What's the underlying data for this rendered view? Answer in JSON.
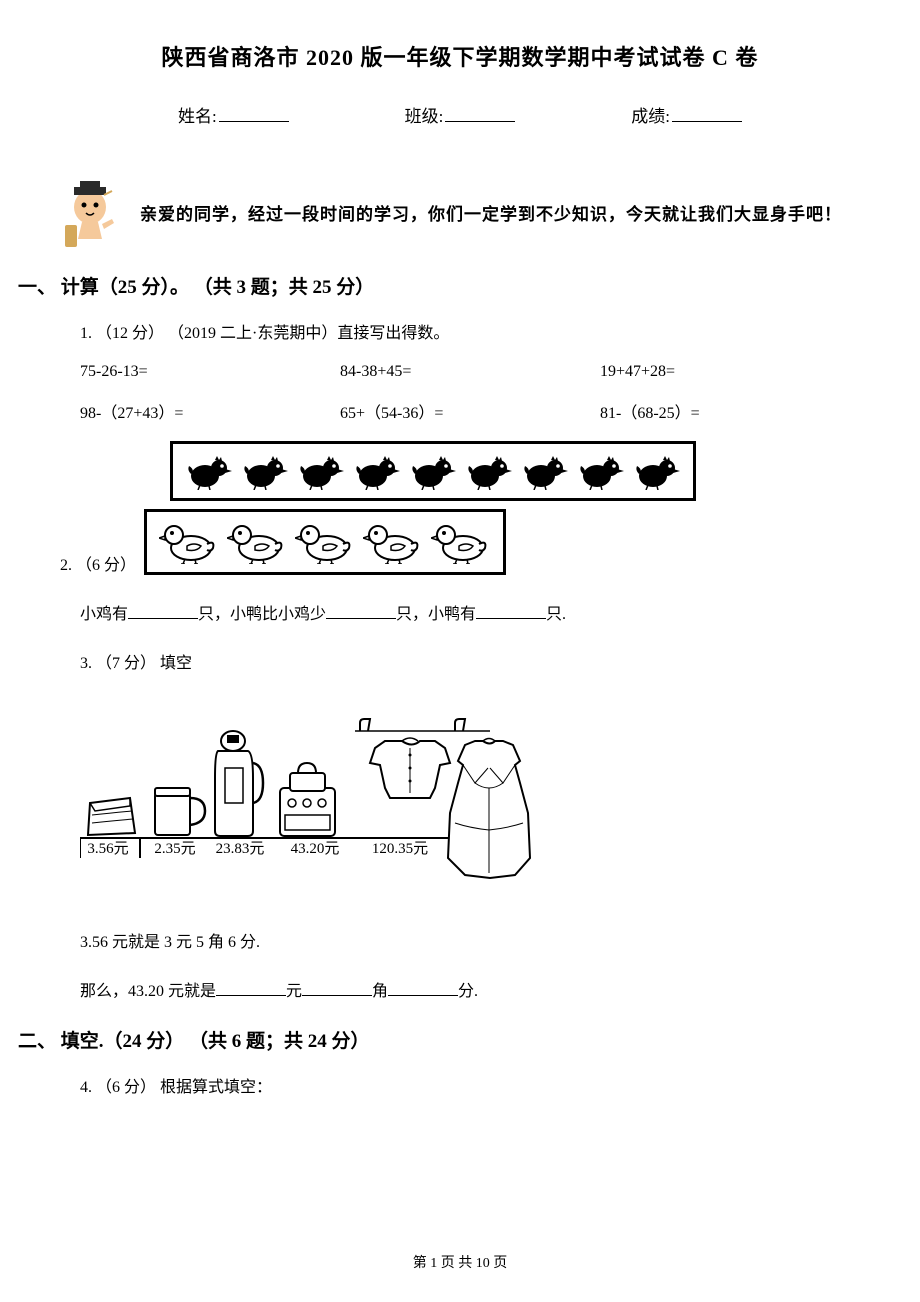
{
  "title": "陕西省商洛市 2020 版一年级下学期数学期中考试试卷 C 卷",
  "info": {
    "name_label": "姓名:",
    "class_label": "班级:",
    "score_label": "成绩:"
  },
  "greeting": "亲爱的同学，经过一段时间的学习，你们一定学到不少知识，今天就让我们大显身手吧！",
  "section1": {
    "header": "一、 计算（25 分）。 （共 3 题；共 25 分）",
    "q1": {
      "text": "1. （12 分） （2019 二上·东莞期中）直接写出得数。",
      "row1": [
        "75-26-13=",
        "84-38+45=",
        "19+47+28="
      ],
      "row2": [
        "98-（27+43）=",
        "65+（54-36）=",
        "81-（68-25）="
      ]
    },
    "q2": {
      "label": "2. （6 分）",
      "chicken_count": 9,
      "duck_count": 5,
      "text_parts": [
        "小鸡有",
        "只，小鸭比小鸡少",
        "只，小鸭有",
        "只."
      ]
    },
    "q3": {
      "text": "3. （7 分） 填空",
      "prices": [
        "3.56元",
        "2.35元",
        "23.83元",
        "43.20元",
        "120.35元"
      ],
      "line1": "3.56 元就是 3 元 5 角 6 分.",
      "line2_parts": [
        "那么，43.20 元就是",
        "元",
        "角",
        "分."
      ]
    }
  },
  "section2": {
    "header": "二、 填空.（24 分） （共 6 题；共 24 分）",
    "q4": "4. （6 分） 根据算式填空："
  },
  "footer": "第 1 页 共 10 页",
  "colors": {
    "text": "#000000",
    "background": "#ffffff",
    "skin": "#f5c99b",
    "hat": "#2a2a2a",
    "scroll": "#d4a85a"
  }
}
